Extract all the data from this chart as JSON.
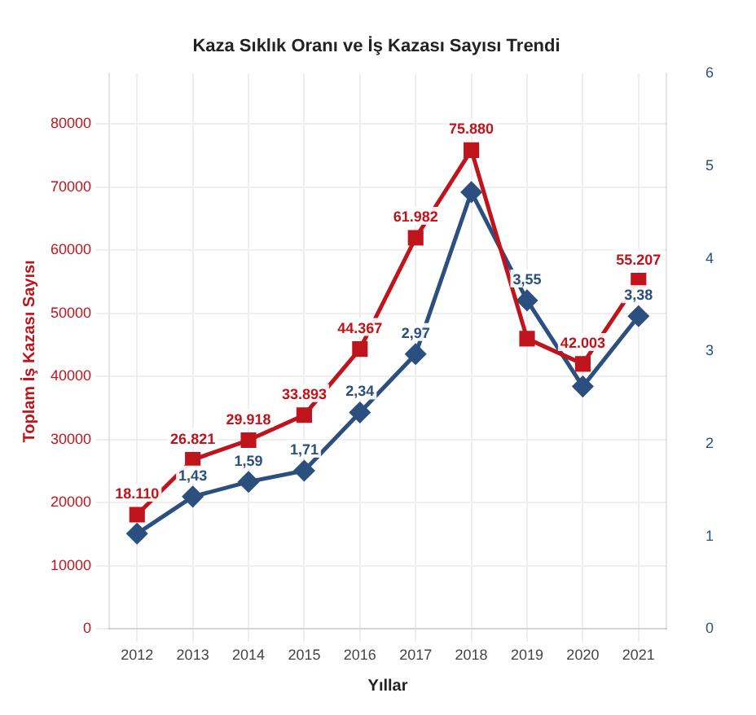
{
  "chart_data": {
    "type": "line",
    "title": "Kaza Sıklık Oranı ve İş Kazası Sayısı Trendi",
    "xlabel": "Yıllar",
    "ylabel": "Toplam İş Kazası Sayısı",
    "categories": [
      "2012",
      "2013",
      "2014",
      "2015",
      "2016",
      "2017",
      "2018",
      "2019",
      "2020",
      "2021"
    ],
    "series": [
      {
        "color": "#c0141c",
        "marker": "square",
        "values": [
          18110,
          26821,
          29918,
          33893,
          44367,
          61982,
          75880,
          46000,
          42003,
          55207
        ],
        "value_labels": [
          "18.110",
          "26.821",
          "29.918",
          "33.893",
          "44.367",
          "61.982",
          "75.880",
          null,
          "42.003",
          "55.207"
        ]
      },
      {
        "color": "#2b4f7e",
        "marker": "diamond",
        "axis": "y2",
        "values": [
          1.03,
          1.43,
          1.59,
          1.71,
          2.34,
          2.97,
          4.72,
          3.55,
          2.62,
          3.38
        ],
        "value_labels": [
          null,
          "1,43",
          "1,59",
          "1,71",
          "2,34",
          "2,97",
          null,
          "3,55",
          null,
          "3,38"
        ]
      }
    ],
    "ylim": [
      0,
      88000
    ],
    "yticks": [
      0,
      10000,
      20000,
      30000,
      40000,
      50000,
      60000,
      70000,
      80000
    ],
    "y2lim": [
      0,
      6
    ],
    "y2ticks": [
      0,
      1,
      2,
      3,
      4,
      5,
      6
    ],
    "grid": true,
    "legend": false,
    "line_style": "solid"
  }
}
